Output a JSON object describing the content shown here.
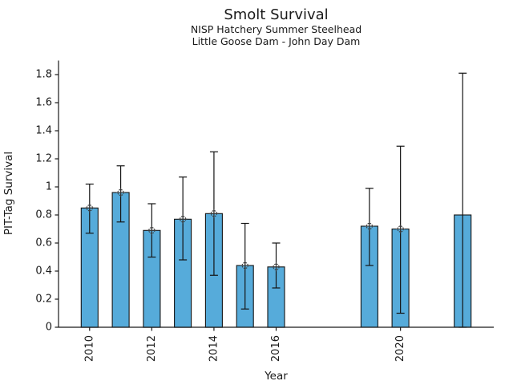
{
  "chart_data": {
    "type": "bar",
    "title": "Smolt Survival",
    "subtitle_lines": [
      "NISP Hatchery Summer Steelhead",
      "Little Goose Dam - John Day Dam"
    ],
    "xlabel": "Year",
    "ylabel": "PIT-Tag Survival",
    "categories": [
      2010,
      2011,
      2012,
      2013,
      2014,
      2015,
      2016,
      2019,
      2020,
      2022
    ],
    "values": [
      0.85,
      0.96,
      0.69,
      0.77,
      0.81,
      0.44,
      0.43,
      0.72,
      0.7,
      0.8
    ],
    "error_low": [
      0.67,
      0.75,
      0.5,
      0.48,
      0.37,
      0.13,
      0.28,
      0.44,
      0.1,
      0.0
    ],
    "error_high": [
      1.02,
      1.15,
      0.88,
      1.07,
      1.25,
      0.74,
      0.6,
      0.99,
      1.29,
      1.81
    ],
    "point_marker": [
      true,
      true,
      true,
      true,
      true,
      true,
      true,
      true,
      true,
      false
    ],
    "xticks": [
      2010,
      2012,
      2014,
      2016,
      2020
    ],
    "yticks": [
      0,
      0.2,
      0.4,
      0.6,
      0.8,
      1,
      1.2,
      1.4,
      1.6,
      1.8
    ],
    "ytick_labels": [
      "0",
      "0.2",
      "0.4",
      "0.6",
      "0.8",
      "1",
      "1.2",
      "1.4",
      "1.6",
      "1.8"
    ],
    "xlim": [
      2009,
      2023
    ],
    "ylim": [
      0,
      1.9
    ],
    "grid": false,
    "legend": null,
    "bar_color": "#56ABDA",
    "bar_edge_color": "#141414",
    "error_color": "#141414",
    "marker_color": "#3a3a3a",
    "axis_color": "#1a1a1a"
  }
}
